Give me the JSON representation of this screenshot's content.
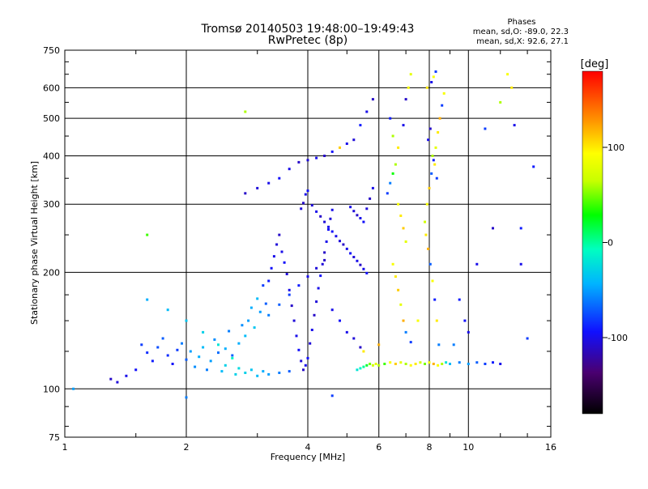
{
  "title_line1": "Tromsø 20140503 19:48:00–19:49:43",
  "title_line2": "RwPretec (8p)",
  "stats": {
    "heading": "Phases",
    "line_o": "mean, sd,O: -89.0, 22.3",
    "line_x": "mean, sd,X:  92.6, 27.1"
  },
  "colorbar": {
    "unit": "[deg]",
    "ticks": [
      {
        "label": "100",
        "value": 100
      },
      {
        "label": "0",
        "value": 0
      },
      {
        "label": "-100",
        "value": -100
      }
    ],
    "range": [
      -180,
      180
    ]
  },
  "chart_data": {
    "type": "scatter",
    "title": "Tromsø 20140503 19:48:00–19:49:43",
    "subtitle": "RwPretec (8p)",
    "xlabel": "Frequency [MHz]",
    "ylabel": "Stationary phase Virtual Height [km]",
    "x_scale": "log",
    "y_scale": "log",
    "xlim": [
      1,
      16
    ],
    "ylim": [
      75,
      750
    ],
    "grid": true,
    "x_ticks": [
      {
        "label": "1",
        "value": 1
      },
      {
        "label": "2",
        "value": 2
      },
      {
        "label": "4",
        "value": 4
      },
      {
        "label": "6",
        "value": 6
      },
      {
        "label": "8",
        "value": 8
      },
      {
        "label": "10",
        "value": 10
      },
      {
        "label": "16",
        "value": 16
      }
    ],
    "y_ticks": [
      {
        "label": "75",
        "value": 75
      },
      {
        "label": "100",
        "value": 100
      },
      {
        "label": "200",
        "value": 200
      },
      {
        "label": "300",
        "value": 300
      },
      {
        "label": "400",
        "value": 400
      },
      {
        "label": "500",
        "value": 500
      },
      {
        "label": "600",
        "value": 600
      },
      {
        "label": "750",
        "value": 750
      }
    ],
    "colorbar_label": "[deg]",
    "points": [
      [
        1.3,
        106,
        -110
      ],
      [
        1.35,
        104,
        -105
      ],
      [
        1.42,
        108,
        -100
      ],
      [
        1.5,
        112,
        -95
      ],
      [
        1.55,
        130,
        -80
      ],
      [
        1.6,
        124,
        -85
      ],
      [
        1.65,
        118,
        -90
      ],
      [
        1.7,
        128,
        -75
      ],
      [
        1.75,
        135,
        -70
      ],
      [
        1.8,
        122,
        -85
      ],
      [
        1.85,
        116,
        -95
      ],
      [
        1.9,
        126,
        -80
      ],
      [
        1.95,
        131,
        -60
      ],
      [
        2.0,
        119,
        -70
      ],
      [
        2.05,
        125,
        -50
      ],
      [
        2.1,
        114,
        -55
      ],
      [
        2.15,
        121,
        -45
      ],
      [
        2.2,
        128,
        -40
      ],
      [
        2.25,
        112,
        -60
      ],
      [
        2.3,
        118,
        -50
      ],
      [
        2.35,
        134,
        -55
      ],
      [
        2.4,
        124,
        -65
      ],
      [
        2.45,
        111,
        -40
      ],
      [
        2.5,
        127,
        -45
      ],
      [
        2.55,
        141,
        -60
      ],
      [
        2.6,
        122,
        -70
      ],
      [
        2.65,
        109,
        -30
      ],
      [
        2.7,
        131,
        -45
      ],
      [
        2.75,
        146,
        -55
      ],
      [
        2.8,
        137,
        -40
      ],
      [
        2.85,
        150,
        -50
      ],
      [
        2.9,
        162,
        -45
      ],
      [
        2.95,
        144,
        -35
      ],
      [
        3.0,
        171,
        -40
      ],
      [
        3.05,
        158,
        -50
      ],
      [
        3.1,
        185,
        -80
      ],
      [
        3.15,
        166,
        -70
      ],
      [
        3.2,
        190,
        -90
      ],
      [
        3.25,
        205,
        -95
      ],
      [
        3.3,
        220,
        -100
      ],
      [
        3.35,
        236,
        -105
      ],
      [
        3.4,
        250,
        -110
      ],
      [
        3.45,
        226,
        -100
      ],
      [
        3.5,
        212,
        -95
      ],
      [
        3.55,
        198,
        -105
      ],
      [
        3.6,
        180,
        -100
      ],
      [
        3.65,
        164,
        -110
      ],
      [
        3.7,
        150,
        -105
      ],
      [
        3.75,
        137,
        -100
      ],
      [
        3.8,
        126,
        -95
      ],
      [
        3.85,
        118,
        -105
      ],
      [
        3.9,
        112,
        -110
      ],
      [
        3.95,
        115,
        -100
      ],
      [
        4.0,
        120,
        -95
      ],
      [
        4.05,
        131,
        -105
      ],
      [
        4.1,
        142,
        -100
      ],
      [
        4.15,
        155,
        -110
      ],
      [
        4.2,
        168,
        -105
      ],
      [
        4.25,
        182,
        -100
      ],
      [
        4.3,
        196,
        -95
      ],
      [
        4.35,
        210,
        -105
      ],
      [
        4.4,
        225,
        -110
      ],
      [
        4.45,
        240,
        -100
      ],
      [
        4.5,
        258,
        -95
      ],
      [
        4.55,
        275,
        -105
      ],
      [
        4.6,
        290,
        -100
      ],
      [
        3.85,
        292,
        -105
      ],
      [
        3.9,
        302,
        -110
      ],
      [
        3.95,
        318,
        -100
      ],
      [
        4.0,
        325,
        -95
      ],
      [
        4.1,
        298,
        -105
      ],
      [
        4.2,
        287,
        -100
      ],
      [
        4.3,
        279,
        -110
      ],
      [
        4.4,
        270,
        -105
      ],
      [
        4.5,
        262,
        -100
      ],
      [
        4.6,
        255,
        -95
      ],
      [
        4.7,
        248,
        -100
      ],
      [
        4.8,
        241,
        -105
      ],
      [
        4.9,
        236,
        -110
      ],
      [
        5.0,
        230,
        -100
      ],
      [
        5.1,
        224,
        -95
      ],
      [
        5.2,
        219,
        -105
      ],
      [
        5.3,
        214,
        -100
      ],
      [
        5.4,
        209,
        -110
      ],
      [
        5.5,
        204,
        -100
      ],
      [
        5.6,
        199,
        -95
      ],
      [
        5.1,
        295,
        -100
      ],
      [
        5.2,
        288,
        -105
      ],
      [
        5.3,
        281,
        -110
      ],
      [
        5.4,
        276,
        -100
      ],
      [
        5.5,
        270,
        -95
      ],
      [
        5.6,
        292,
        -105
      ],
      [
        5.7,
        310,
        -110
      ],
      [
        5.8,
        330,
        -100
      ],
      [
        5.3,
        112,
        -20
      ],
      [
        5.4,
        113,
        -10
      ],
      [
        5.5,
        114,
        0
      ],
      [
        5.6,
        115,
        20
      ],
      [
        5.7,
        116,
        50
      ],
      [
        5.8,
        115,
        70
      ],
      [
        5.9,
        116,
        80
      ],
      [
        6.0,
        115,
        60
      ],
      [
        6.2,
        116,
        40
      ],
      [
        6.4,
        117,
        90
      ],
      [
        6.6,
        116,
        110
      ],
      [
        6.8,
        117,
        80
      ],
      [
        7.0,
        116,
        60
      ],
      [
        7.2,
        115,
        95
      ],
      [
        7.4,
        116,
        100
      ],
      [
        7.6,
        117,
        70
      ],
      [
        7.8,
        116,
        50
      ],
      [
        8.0,
        117,
        85
      ],
      [
        8.2,
        116,
        120
      ],
      [
        8.4,
        115,
        90
      ],
      [
        8.6,
        116,
        60
      ],
      [
        8.8,
        117,
        -20
      ],
      [
        9.0,
        116,
        -40
      ],
      [
        9.5,
        117,
        -60
      ],
      [
        10.0,
        116,
        -50
      ],
      [
        10.5,
        117,
        -70
      ],
      [
        11.0,
        116,
        -80
      ],
      [
        11.5,
        117,
        -90
      ],
      [
        12.0,
        116,
        -100
      ],
      [
        6.3,
        320,
        -80
      ],
      [
        6.4,
        340,
        -60
      ],
      [
        6.5,
        360,
        30
      ],
      [
        6.6,
        380,
        60
      ],
      [
        6.7,
        300,
        90
      ],
      [
        6.8,
        280,
        100
      ],
      [
        6.9,
        260,
        110
      ],
      [
        7.0,
        240,
        80
      ],
      [
        6.5,
        210,
        90
      ],
      [
        6.6,
        195,
        100
      ],
      [
        6.7,
        180,
        110
      ],
      [
        6.8,
        165,
        80
      ],
      [
        6.9,
        150,
        120
      ],
      [
        7.0,
        140,
        -60
      ],
      [
        7.2,
        132,
        -80
      ],
      [
        6.4,
        500,
        -90
      ],
      [
        6.5,
        450,
        60
      ],
      [
        6.7,
        420,
        100
      ],
      [
        6.9,
        480,
        -100
      ],
      [
        7.0,
        560,
        -110
      ],
      [
        7.1,
        600,
        90
      ],
      [
        7.2,
        650,
        80
      ],
      [
        7.8,
        270,
        70
      ],
      [
        7.9,
        300,
        90
      ],
      [
        8.0,
        330,
        110
      ],
      [
        8.1,
        360,
        -70
      ],
      [
        8.2,
        390,
        -90
      ],
      [
        8.3,
        420,
        80
      ],
      [
        8.4,
        460,
        100
      ],
      [
        8.5,
        500,
        120
      ],
      [
        8.6,
        540,
        -80
      ],
      [
        8.7,
        580,
        90
      ],
      [
        7.95,
        440,
        -100
      ],
      [
        8.05,
        470,
        -110
      ],
      [
        8.15,
        400,
        60
      ],
      [
        8.25,
        380,
        100
      ],
      [
        8.35,
        350,
        -80
      ],
      [
        7.85,
        250,
        100
      ],
      [
        7.95,
        230,
        120
      ],
      [
        8.05,
        210,
        -70
      ],
      [
        8.15,
        190,
        90
      ],
      [
        8.25,
        170,
        -90
      ],
      [
        8.35,
        150,
        100
      ],
      [
        8.45,
        130,
        -60
      ],
      [
        8.1,
        620,
        -100
      ],
      [
        8.2,
        640,
        90
      ],
      [
        8.3,
        660,
        -80
      ],
      [
        7.9,
        600,
        100
      ],
      [
        5.8,
        560,
        -110
      ],
      [
        5.6,
        520,
        -100
      ],
      [
        5.4,
        480,
        -90
      ],
      [
        5.2,
        440,
        -105
      ],
      [
        5.0,
        430,
        -100
      ],
      [
        4.8,
        420,
        110
      ],
      [
        4.6,
        410,
        -95
      ],
      [
        4.4,
        400,
        -110
      ],
      [
        4.2,
        395,
        -100
      ],
      [
        4.0,
        390,
        -105
      ],
      [
        3.8,
        385,
        -110
      ],
      [
        3.6,
        370,
        -100
      ],
      [
        3.4,
        350,
        -95
      ],
      [
        3.2,
        340,
        -100
      ],
      [
        3.0,
        330,
        -105
      ],
      [
        2.8,
        320,
        -110
      ],
      [
        2.4,
        130,
        -20
      ],
      [
        2.6,
        120,
        -10
      ],
      [
        2.8,
        110,
        -30
      ],
      [
        3.0,
        108,
        -40
      ],
      [
        3.2,
        109,
        -50
      ],
      [
        3.4,
        110,
        -60
      ],
      [
        3.6,
        111,
        -70
      ],
      [
        2.2,
        140,
        -30
      ],
      [
        2.0,
        150,
        -35
      ],
      [
        1.8,
        160,
        -40
      ],
      [
        1.6,
        170,
        -45
      ],
      [
        2.9,
        112,
        -35
      ],
      [
        3.1,
        111,
        -45
      ],
      [
        2.7,
        113,
        -25
      ],
      [
        2.5,
        115,
        -30
      ],
      [
        12.5,
        650,
        90
      ],
      [
        12.8,
        600,
        100
      ],
      [
        13.0,
        480,
        -100
      ],
      [
        13.5,
        260,
        -90
      ],
      [
        13.5,
        210,
        -100
      ],
      [
        12.0,
        550,
        60
      ],
      [
        11.0,
        470,
        -80
      ],
      [
        10.5,
        210,
        -100
      ],
      [
        11.5,
        260,
        -110
      ],
      [
        9.5,
        170,
        -90
      ],
      [
        9.8,
        150,
        -95
      ],
      [
        10.0,
        140,
        -100
      ],
      [
        9.2,
        130,
        -60
      ],
      [
        14.0,
        135,
        -80
      ],
      [
        14.5,
        375,
        -90
      ],
      [
        1.05,
        100,
        -50
      ],
      [
        2.0,
        95,
        -60
      ],
      [
        2.8,
        520,
        60
      ],
      [
        1.6,
        250,
        40
      ],
      [
        4.6,
        96,
        -80
      ],
      [
        5.5,
        125,
        100
      ],
      [
        6.0,
        130,
        120
      ],
      [
        7.5,
        150,
        90
      ],
      [
        3.2,
        155,
        -60
      ],
      [
        3.4,
        165,
        -70
      ],
      [
        3.6,
        175,
        -80
      ],
      [
        3.8,
        185,
        -90
      ],
      [
        4.0,
        195,
        -100
      ],
      [
        4.2,
        205,
        -105
      ],
      [
        4.4,
        215,
        -110
      ],
      [
        4.6,
        160,
        -100
      ],
      [
        4.8,
        150,
        -95
      ],
      [
        5.0,
        140,
        -100
      ],
      [
        5.2,
        135,
        -105
      ],
      [
        5.4,
        128,
        -110
      ]
    ]
  }
}
